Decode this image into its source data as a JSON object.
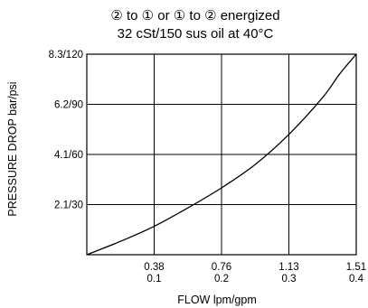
{
  "chart_data": {
    "type": "line",
    "title": "② to ① or ① to ② energized",
    "subtitle": "32 cSt/150 sus oil at 40°C",
    "xlabel": "FLOW lpm/gpm",
    "ylabel": "PRESSURE DROP bar/psi",
    "x_ticks": [
      {
        "primary": "0.38",
        "secondary": "0.1",
        "value": 0.1
      },
      {
        "primary": "0.76",
        "secondary": "0.2",
        "value": 0.2
      },
      {
        "primary": "1.13",
        "secondary": "0.3",
        "value": 0.3
      },
      {
        "primary": "1.51",
        "secondary": "0.4",
        "value": 0.4
      }
    ],
    "y_ticks": [
      {
        "label": "2.1/30",
        "value": 30
      },
      {
        "label": "4.1/60",
        "value": 60
      },
      {
        "label": "6.2/90",
        "value": 90
      },
      {
        "label": "8.3/120",
        "value": 120
      }
    ],
    "xlim": [
      0,
      0.4
    ],
    "ylim": [
      0,
      120
    ],
    "grid": true,
    "series": [
      {
        "x": [
          0,
          0.05,
          0.1,
          0.15,
          0.2,
          0.25,
          0.3,
          0.35,
          0.375,
          0.4
        ],
        "y": [
          0,
          8,
          17,
          28,
          40,
          54,
          72,
          94,
          108,
          120
        ]
      }
    ]
  }
}
